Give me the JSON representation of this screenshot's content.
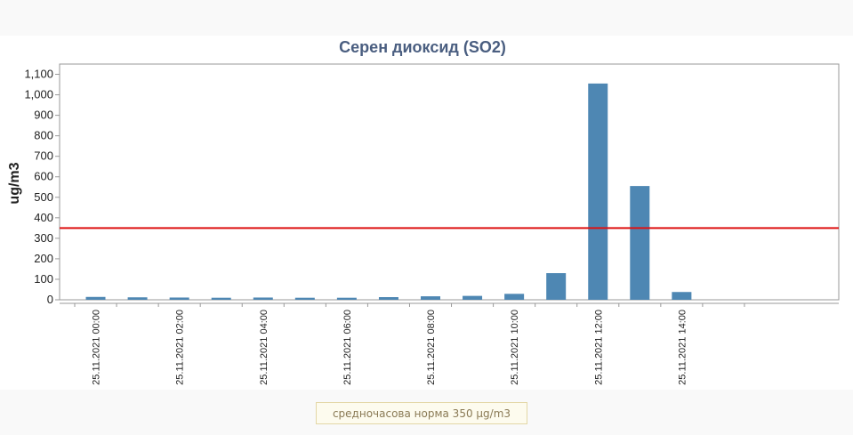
{
  "chart_data": {
    "type": "bar",
    "title": "Серен диоксид (SO2)",
    "ylabel": "ug/m3",
    "ylim": [
      0,
      1150
    ],
    "yticks": [
      0,
      100,
      200,
      300,
      400,
      500,
      600,
      700,
      800,
      900,
      1000,
      1100
    ],
    "ytick_labels": [
      "0",
      "100",
      "200",
      "300",
      "400",
      "500",
      "600",
      "700",
      "800",
      "900",
      "1,000",
      "1,100"
    ],
    "categories": [
      "25.11.2021 00:00",
      "25.11.2021 01:00",
      "25.11.2021 02:00",
      "25.11.2021 03:00",
      "25.11.2021 04:00",
      "25.11.2021 05:00",
      "25.11.2021 06:00",
      "25.11.2021 07:00",
      "25.11.2021 08:00",
      "25.11.2021 09:00",
      "25.11.2021 10:00",
      "25.11.2021 11:00",
      "25.11.2021 12:00",
      "25.11.2021 13:00",
      "25.11.2021 14:00",
      "25.11.2021 15:00",
      "25.11.2021 16:00"
    ],
    "xtick_labels": [
      "25.11.2021 00:00",
      "25.11.2021 02:00",
      "25.11.2021 04:00",
      "25.11.2021 06:00",
      "25.11.2021 08:00",
      "25.11.2021 10:00",
      "25.11.2021 12:00",
      "25.11.2021 14:00"
    ],
    "values": [
      14,
      12,
      11,
      10,
      11,
      10,
      10,
      13,
      17,
      19,
      29,
      130,
      1055,
      555,
      38,
      null,
      null
    ],
    "threshold": {
      "value": 350,
      "color": "#dd1111"
    },
    "bar_color": "#4e87b3",
    "legend_text": "средночасова норма 350 µg/m3",
    "grid": false
  }
}
